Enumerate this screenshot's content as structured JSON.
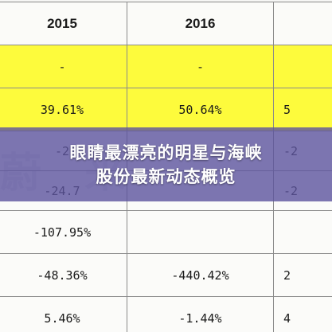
{
  "table": {
    "headers": [
      "2015",
      "2016",
      ""
    ],
    "rows": [
      [
        "-",
        "-",
        ""
      ],
      [
        "39.61%",
        "50.64%",
        "5"
      ],
      [
        "-2",
        "",
        "-2"
      ],
      [
        "-24.7",
        "",
        "-2"
      ],
      [
        "-107.95%",
        "",
        ""
      ],
      [
        "-48.36%",
        "-440.42%",
        "2"
      ],
      [
        "5.46%",
        "-1.44%",
        "4"
      ]
    ]
  },
  "watermark": {
    "text": "蔚 来"
  },
  "overlay": {
    "title_line1": "眼睛最漂亮的明星与海峡",
    "title_line2": "股份最新动态概览",
    "background_color": "#5c549e",
    "text_color": "#ffffff"
  },
  "colors": {
    "highlight_yellow": "#fdfb3c",
    "grid_line": "#8a8a8a"
  }
}
